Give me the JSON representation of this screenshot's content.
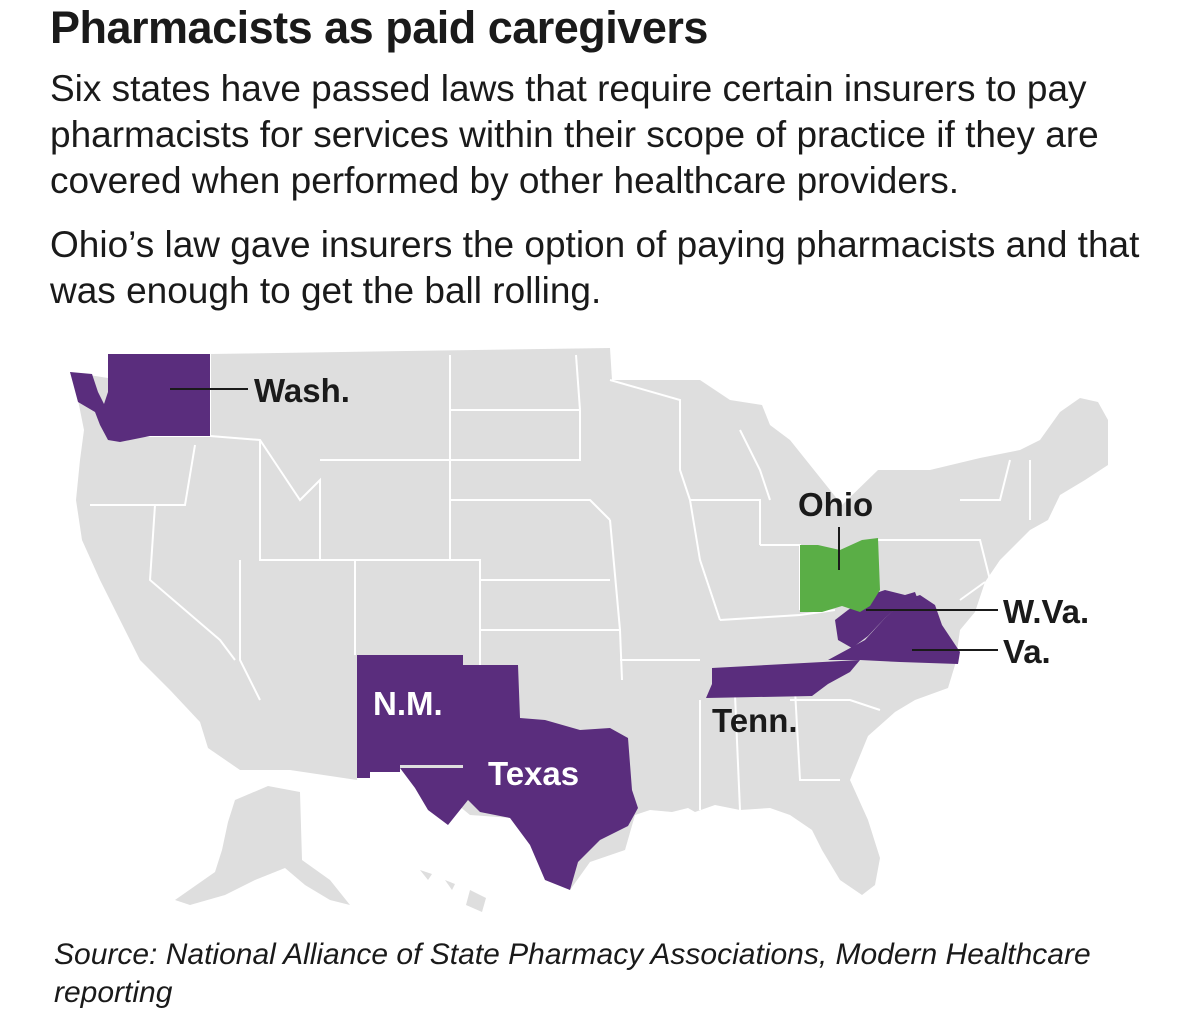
{
  "header": {
    "title": "Pharmacists as paid caregivers",
    "paragraph_1": "Six states have passed laws that require certain insurers to pay pharmacists for services within their scope of practice if they are covered when performed by other healthcare providers.",
    "paragraph_2": "Ohio’s law gave insurers the option of paying pharmacists and that was enough to get the ball rolling."
  },
  "map": {
    "colors": {
      "base": "#dedede",
      "border": "#ffffff",
      "law_state": "#5a2d7d",
      "option_state": "#5aae46",
      "label_dark": "#1a1a1a",
      "label_light": "#ffffff"
    },
    "state_labels": {
      "wash": "Wash.",
      "ohio": "Ohio",
      "wva": "W.Va.",
      "va": "Va.",
      "tenn": "Tenn.",
      "nm": "N.M.",
      "texas": "Texas"
    },
    "legend_categories": {
      "purple": "Six states have passed laws",
      "green": "Ohio"
    }
  },
  "footer": {
    "source": "Source: National Alliance of State Pharmacy Associations, Modern Healthcare reporting"
  }
}
